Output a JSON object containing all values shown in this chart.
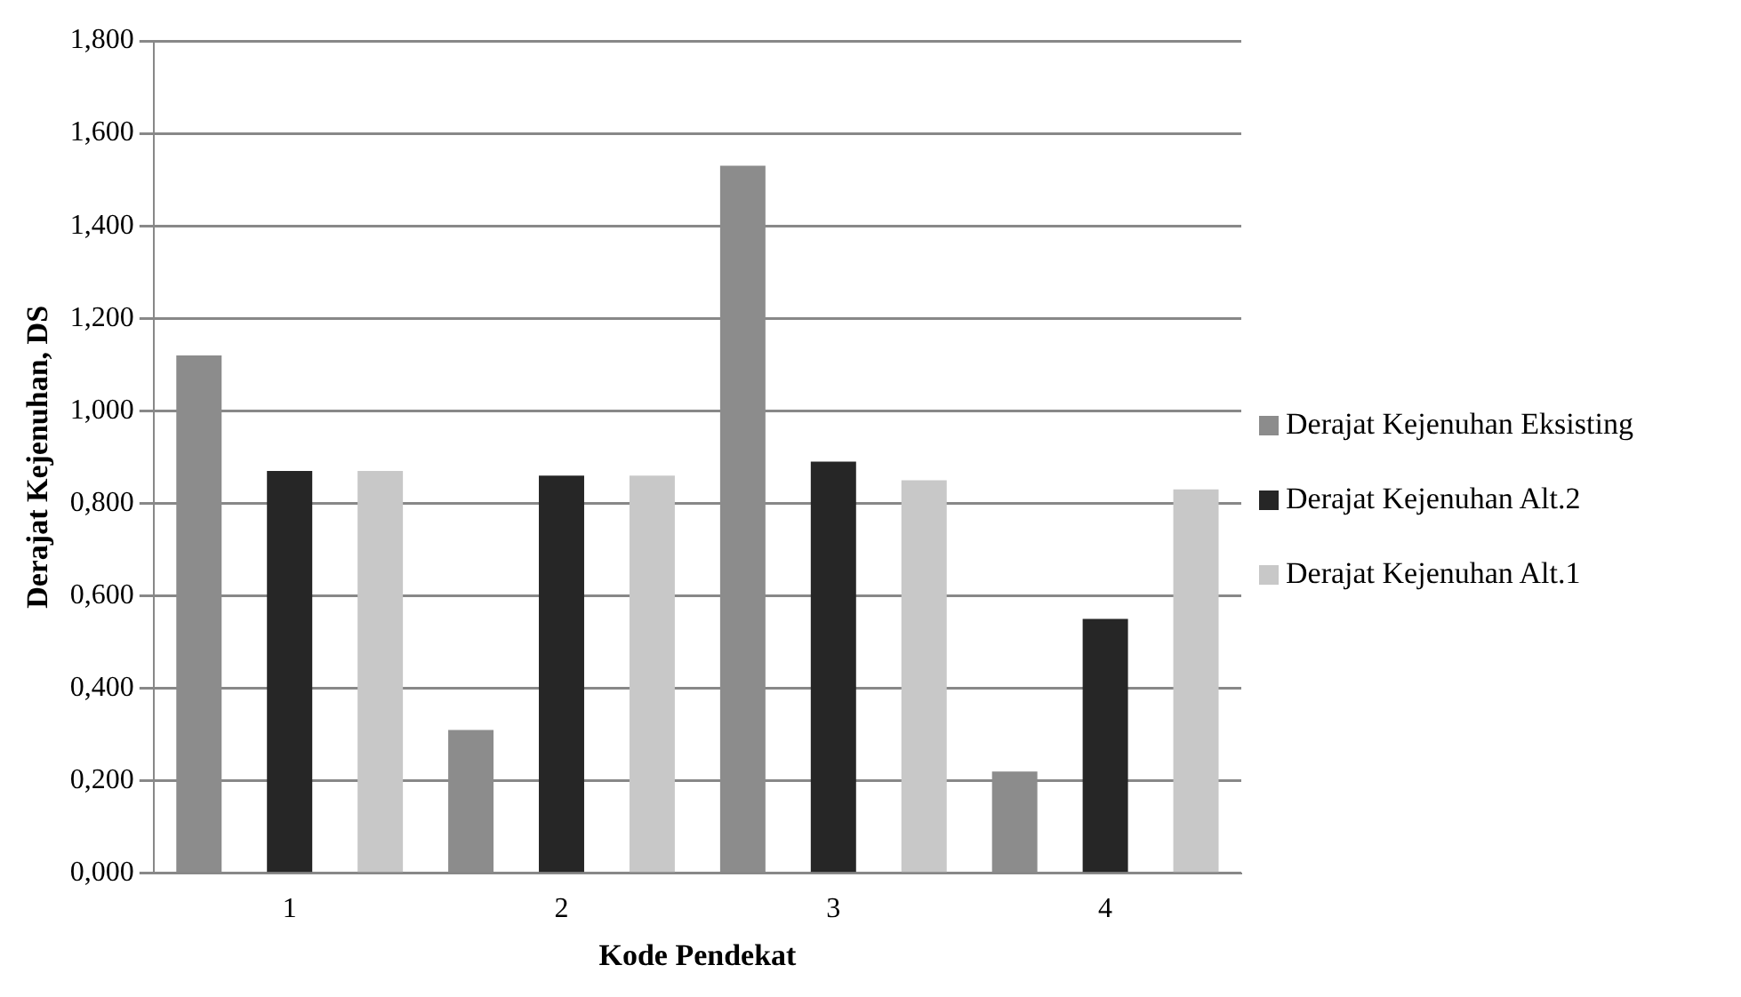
{
  "chart_data": {
    "type": "bar",
    "xlabel": "Kode Pendekat",
    "ylabel": "Derajat Kejenuhan, DS",
    "categories": [
      "1",
      "2",
      "3",
      "4"
    ],
    "series": [
      {
        "name": "Derajat Kejenuhan Eksisting",
        "color": "#8c8c8c",
        "values": [
          1.12,
          0.31,
          1.53,
          0.22
        ]
      },
      {
        "name": "Derajat Kejenuhan Alt.2",
        "color": "#262626",
        "values": [
          0.87,
          0.86,
          0.89,
          0.55
        ]
      },
      {
        "name": "Derajat Kejenuhan Alt.1",
        "color": "#c8c8c8",
        "values": [
          0.87,
          0.86,
          0.85,
          0.83
        ]
      }
    ],
    "ylim": [
      0,
      1.8
    ],
    "yticks": [
      {
        "value": 0,
        "label": "0,000"
      },
      {
        "value": 0.2,
        "label": "0,200"
      },
      {
        "value": 0.4,
        "label": "0,400"
      },
      {
        "value": 0.6,
        "label": "0,600"
      },
      {
        "value": 0.8,
        "label": "0,800"
      },
      {
        "value": 1,
        "label": "1,000"
      },
      {
        "value": 1.2,
        "label": "1,200"
      },
      {
        "value": 1.4,
        "label": "1,400"
      },
      {
        "value": 1.6,
        "label": "1,600"
      },
      {
        "value": 1.8,
        "label": "1,800"
      }
    ],
    "grid": "y",
    "legend": "right"
  }
}
